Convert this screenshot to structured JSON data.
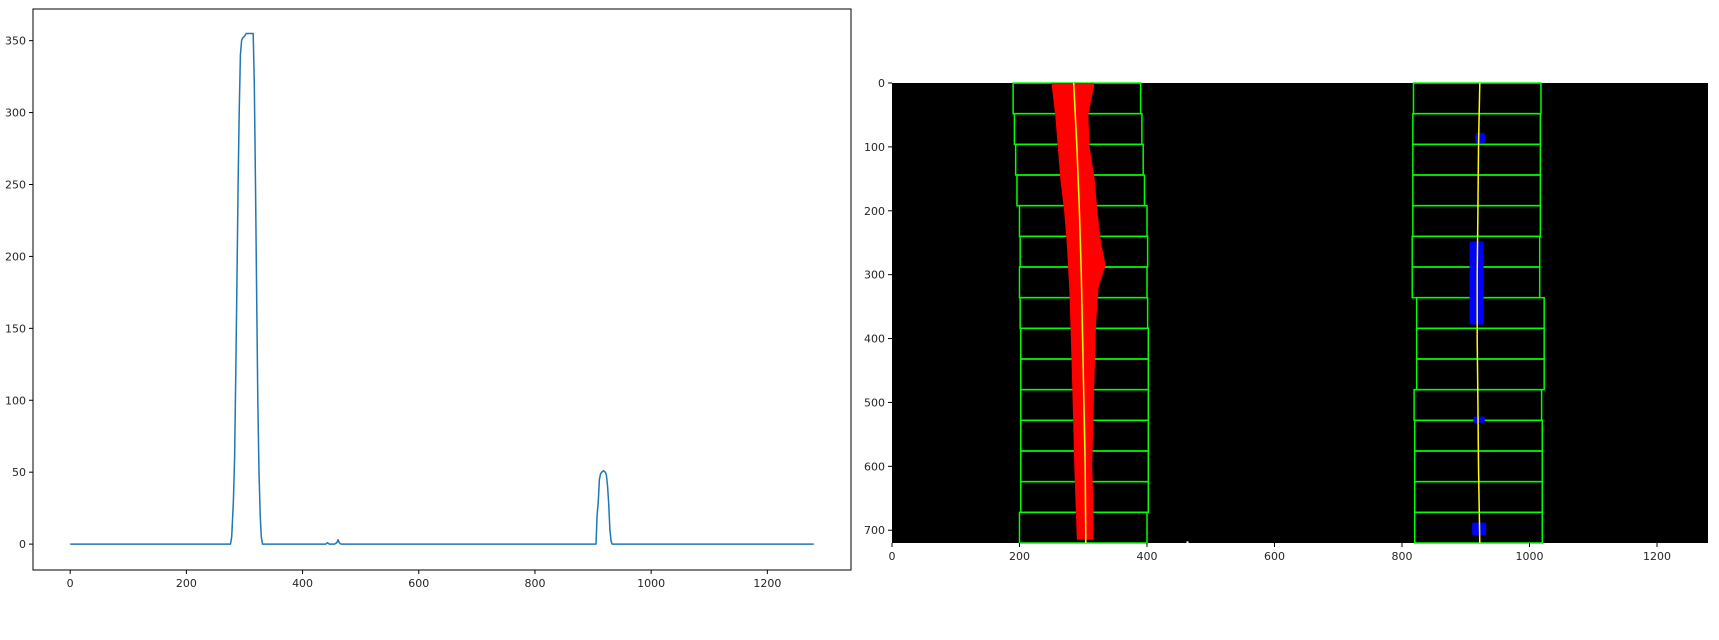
{
  "chart_data": [
    {
      "type": "line",
      "title": "",
      "xlabel": "",
      "ylabel": "",
      "xlim": [
        -64,
        1344
      ],
      "ylim": [
        -18,
        372
      ],
      "xticks": [
        0,
        200,
        400,
        600,
        800,
        1000,
        1200
      ],
      "yticks": [
        0,
        50,
        100,
        150,
        200,
        250,
        300,
        350
      ],
      "series": [
        {
          "color": "#1f77b4",
          "x": [
            0,
            276,
            278,
            281,
            283,
            285,
            287,
            289,
            291,
            293,
            295,
            297,
            300,
            303,
            306,
            310,
            315,
            317,
            319,
            321,
            323,
            325,
            327,
            329,
            331,
            440,
            443,
            446,
            449,
            455,
            459,
            461,
            463,
            466,
            900,
            905,
            907,
            909,
            911,
            913,
            915,
            918,
            921,
            923,
            925,
            927,
            929,
            931,
            933,
            1280
          ],
          "y": [
            0,
            0,
            5,
            30,
            60,
            120,
            180,
            250,
            300,
            340,
            350,
            352,
            353,
            355,
            355,
            355,
            355,
            320,
            250,
            170,
            100,
            50,
            20,
            5,
            0,
            0,
            1,
            0,
            0,
            0,
            1,
            3,
            1,
            0,
            0,
            0,
            20,
            30,
            45,
            49,
            50,
            51,
            50,
            48,
            40,
            28,
            10,
            2,
            0,
            0
          ]
        }
      ]
    },
    {
      "type": "scatter",
      "title": "",
      "xlabel": "",
      "ylabel": "",
      "xlim": [
        0,
        1280
      ],
      "ylim": [
        720,
        0
      ],
      "xticks": [
        0,
        200,
        400,
        600,
        800,
        1000,
        1200
      ],
      "yticks": [
        0,
        100,
        200,
        300,
        400,
        500,
        600,
        700
      ],
      "background": "#000000",
      "window_color": "#00ff00",
      "left_pixels_color": "#ff0000",
      "right_pixels_color": "#0000ff",
      "fit_color": "#ffff00",
      "windows": [
        {
          "side": "left",
          "x_low": 190,
          "x_high": 390,
          "y_low": 0,
          "y_high": 48
        },
        {
          "side": "left",
          "x_low": 192,
          "x_high": 392,
          "y_low": 48,
          "y_high": 96
        },
        {
          "side": "left",
          "x_low": 194,
          "x_high": 394,
          "y_low": 96,
          "y_high": 144
        },
        {
          "side": "left",
          "x_low": 196,
          "x_high": 396,
          "y_low": 144,
          "y_high": 192
        },
        {
          "side": "left",
          "x_low": 200,
          "x_high": 400,
          "y_low": 192,
          "y_high": 240
        },
        {
          "side": "left",
          "x_low": 201,
          "x_high": 401,
          "y_low": 240,
          "y_high": 288
        },
        {
          "side": "left",
          "x_low": 200,
          "x_high": 400,
          "y_low": 288,
          "y_high": 336
        },
        {
          "side": "left",
          "x_low": 201,
          "x_high": 401,
          "y_low": 336,
          "y_high": 384
        },
        {
          "side": "left",
          "x_low": 202,
          "x_high": 402,
          "y_low": 384,
          "y_high": 432
        },
        {
          "side": "left",
          "x_low": 202,
          "x_high": 402,
          "y_low": 432,
          "y_high": 480
        },
        {
          "side": "left",
          "x_low": 202,
          "x_high": 402,
          "y_low": 480,
          "y_high": 528
        },
        {
          "side": "left",
          "x_low": 202,
          "x_high": 402,
          "y_low": 528,
          "y_high": 576
        },
        {
          "side": "left",
          "x_low": 202,
          "x_high": 402,
          "y_low": 576,
          "y_high": 624
        },
        {
          "side": "left",
          "x_low": 202,
          "x_high": 402,
          "y_low": 624,
          "y_high": 672
        },
        {
          "side": "left",
          "x_low": 200,
          "x_high": 400,
          "y_low": 672,
          "y_high": 720
        },
        {
          "side": "right",
          "x_low": 818,
          "x_high": 1018,
          "y_low": 0,
          "y_high": 48
        },
        {
          "side": "right",
          "x_low": 817,
          "x_high": 1017,
          "y_low": 48,
          "y_high": 96
        },
        {
          "side": "right",
          "x_low": 817,
          "x_high": 1017,
          "y_low": 96,
          "y_high": 144
        },
        {
          "side": "right",
          "x_low": 817,
          "x_high": 1017,
          "y_low": 144,
          "y_high": 192
        },
        {
          "side": "right",
          "x_low": 817,
          "x_high": 1017,
          "y_low": 192,
          "y_high": 240
        },
        {
          "side": "right",
          "x_low": 816,
          "x_high": 1016,
          "y_low": 240,
          "y_high": 288
        },
        {
          "side": "right",
          "x_low": 816,
          "x_high": 1016,
          "y_low": 288,
          "y_high": 336
        },
        {
          "side": "right",
          "x_low": 823,
          "x_high": 1023,
          "y_low": 336,
          "y_high": 384
        },
        {
          "side": "right",
          "x_low": 823,
          "x_high": 1023,
          "y_low": 384,
          "y_high": 432
        },
        {
          "side": "right",
          "x_low": 823,
          "x_high": 1023,
          "y_low": 432,
          "y_high": 480
        },
        {
          "side": "right",
          "x_low": 819,
          "x_high": 1019,
          "y_low": 480,
          "y_high": 528
        },
        {
          "side": "right",
          "x_low": 820,
          "x_high": 1020,
          "y_low": 528,
          "y_high": 576
        },
        {
          "side": "right",
          "x_low": 820,
          "x_high": 1020,
          "y_low": 576,
          "y_high": 624
        },
        {
          "side": "right",
          "x_low": 820,
          "x_high": 1020,
          "y_low": 624,
          "y_high": 672
        },
        {
          "side": "right",
          "x_low": 820,
          "x_high": 1020,
          "y_low": 672,
          "y_high": 720
        }
      ],
      "left_lane_pixels": [
        {
          "y": 0,
          "x_low": 250,
          "x_high": 318
        },
        {
          "y": 50,
          "x_low": 256,
          "x_high": 308
        },
        {
          "y": 100,
          "x_low": 260,
          "x_high": 310
        },
        {
          "y": 150,
          "x_low": 264,
          "x_high": 318
        },
        {
          "y": 200,
          "x_low": 270,
          "x_high": 322
        },
        {
          "y": 250,
          "x_low": 274,
          "x_high": 328
        },
        {
          "y": 285,
          "x_low": 276,
          "x_high": 335
        },
        {
          "y": 320,
          "x_low": 278,
          "x_high": 324
        },
        {
          "y": 380,
          "x_low": 280,
          "x_high": 320
        },
        {
          "y": 450,
          "x_low": 282,
          "x_high": 318
        },
        {
          "y": 520,
          "x_low": 284,
          "x_high": 316
        },
        {
          "y": 600,
          "x_low": 286,
          "x_high": 314
        },
        {
          "y": 660,
          "x_low": 288,
          "x_high": 316
        },
        {
          "y": 715,
          "x_low": 290,
          "x_high": 316
        }
      ],
      "right_lane_pixels": [
        {
          "y_low": 78,
          "y_high": 94,
          "x_low": 915,
          "x_high": 930
        },
        {
          "y_low": 248,
          "y_high": 378,
          "x_low": 906,
          "x_high": 928
        },
        {
          "y_low": 522,
          "y_high": 532,
          "x_low": 912,
          "x_high": 930
        },
        {
          "y_low": 688,
          "y_high": 708,
          "x_low": 910,
          "x_high": 932
        }
      ],
      "left_fit": {
        "x": [
          285,
          290,
          294,
          297,
          299,
          301,
          303,
          304
        ],
        "y": [
          0,
          100,
          200,
          300,
          400,
          500,
          600,
          720
        ]
      },
      "right_fit": {
        "x": [
          922,
          920,
          919,
          918,
          918,
          919,
          920,
          922
        ],
        "y": [
          0,
          100,
          200,
          300,
          400,
          500,
          600,
          720
        ]
      },
      "stray_pixels": [
        {
          "x": 462,
          "y": 719,
          "color": "#ffffff"
        }
      ]
    }
  ]
}
